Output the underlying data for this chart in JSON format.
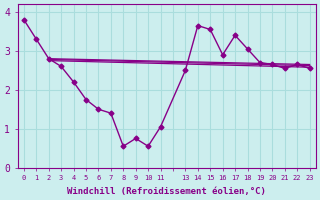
{
  "xlabel": "Windchill (Refroidissement éolien,°C)",
  "bg_color": "#cceeee",
  "grid_color": "#aadddd",
  "line_color": "#880088",
  "ylim": [
    0,
    4.2
  ],
  "yticks": [
    0,
    1,
    2,
    3,
    4
  ],
  "line1_x": [
    0,
    1,
    2,
    3,
    4,
    5,
    6,
    7,
    8,
    9,
    10,
    11,
    13,
    14,
    15,
    16,
    17,
    18,
    19,
    20,
    21,
    22,
    23
  ],
  "line1_y": [
    3.8,
    3.3,
    2.8,
    2.6,
    2.2,
    1.75,
    1.5,
    1.4,
    0.55,
    0.75,
    0.55,
    1.05,
    2.5,
    3.65,
    3.55,
    2.9,
    3.4,
    3.05,
    2.7,
    2.65,
    2.55,
    2.65,
    2.55
  ],
  "line2_x": [
    2,
    23
  ],
  "line2_y": [
    2.8,
    2.65
  ],
  "line3_x": [
    2,
    23
  ],
  "line3_y": [
    2.78,
    2.62
  ],
  "line4_x": [
    2,
    23
  ],
  "line4_y": [
    2.75,
    2.58
  ],
  "xtick_positions": [
    0,
    1,
    2,
    3,
    4,
    5,
    6,
    7,
    8,
    9,
    10,
    11,
    12,
    13,
    14,
    15,
    16,
    17,
    18,
    19,
    20,
    21,
    22,
    23
  ],
  "xtick_labels": [
    "0",
    "1",
    "2",
    "3",
    "4",
    "5",
    "6",
    "7",
    "8",
    "9",
    "10",
    "11",
    "",
    "13",
    "14",
    "15",
    "16",
    "17",
    "18",
    "19",
    "20",
    "21",
    "22",
    "23"
  ]
}
